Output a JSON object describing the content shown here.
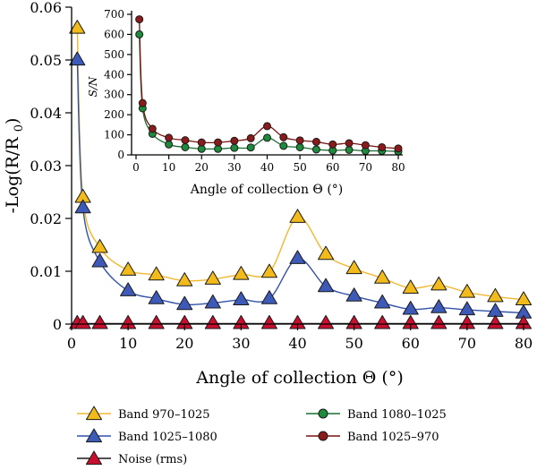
{
  "chart_data": [
    {
      "type": "line",
      "xlabel": "Angle of collection Θ (°)",
      "ylabel": "-Log(R/R0)",
      "xlim": [
        0,
        80
      ],
      "ylim": [
        0,
        0.06
      ],
      "xticks": [
        0,
        10,
        20,
        30,
        40,
        50,
        60,
        70,
        80
      ],
      "yticks": [
        0,
        0.01,
        0.02,
        0.03,
        0.04,
        0.05,
        0.06
      ],
      "xtick_labels": [
        "0",
        "10",
        "20",
        "30",
        "40",
        "50",
        "60",
        "70",
        "80"
      ],
      "ytick_labels": [
        "0",
        "0.01",
        "0.02",
        "0.03",
        "0.04",
        "0.05",
        "0.06"
      ],
      "grid": false,
      "legend_position": "bottom",
      "x": [
        1,
        2,
        5,
        10,
        15,
        20,
        25,
        30,
        35,
        40,
        45,
        50,
        55,
        60,
        65,
        70,
        75,
        80
      ],
      "series": [
        {
          "name": "Band 970–1025",
          "color": "#f2bb1b",
          "line_color": "#f0b830",
          "marker": "triangle",
          "values": [
            0.056,
            0.024,
            0.0145,
            0.0102,
            0.0093,
            0.0082,
            0.0085,
            0.0094,
            0.0098,
            0.0202,
            0.0132,
            0.0105,
            0.0087,
            0.0068,
            0.0074,
            0.006,
            0.0052,
            0.0046
          ]
        },
        {
          "name": "Band 1025–1080",
          "color": "#3d5ab8",
          "line_color": "#3152a8",
          "marker": "triangle",
          "values": [
            0.05,
            0.022,
            0.0118,
            0.0063,
            0.0048,
            0.0037,
            0.004,
            0.0046,
            0.0048,
            0.0124,
            0.0071,
            0.0053,
            0.004,
            0.0028,
            0.0031,
            0.0027,
            0.0024,
            0.0021
          ]
        },
        {
          "name": "Noise (rms)",
          "color": "#c8102e",
          "line_color": "#1a1a1a",
          "marker": "triangle",
          "values": [
            0.0001,
            0.0001,
            0.0001,
            0.0001,
            0.0001,
            0.0001,
            0.0001,
            0.0001,
            0.0001,
            0.0001,
            0.0001,
            0.0001,
            0.0001,
            0.0001,
            0.0001,
            0.0001,
            0.0001,
            0.0001
          ]
        }
      ]
    },
    {
      "type": "line",
      "xlabel": "Angle of collection Θ (°)",
      "ylabel": "S/N",
      "xlim": [
        0,
        80
      ],
      "ylim": [
        0,
        700
      ],
      "xticks": [
        0,
        10,
        20,
        30,
        40,
        50,
        60,
        70,
        80
      ],
      "yticks": [
        0,
        100,
        200,
        300,
        400,
        500,
        600,
        700
      ],
      "xtick_labels": [
        "0",
        "10",
        "20",
        "30",
        "40",
        "50",
        "60",
        "70",
        "80"
      ],
      "ytick_labels": [
        "0",
        "100",
        "200",
        "300",
        "400",
        "500",
        "600",
        "700"
      ],
      "grid": false,
      "legend_position": "bottom",
      "x": [
        1,
        2,
        5,
        10,
        15,
        20,
        25,
        30,
        35,
        40,
        45,
        50,
        55,
        60,
        65,
        70,
        75,
        80
      ],
      "series": [
        {
          "name": "Band 1080–1025",
          "color": "#1e8a3c",
          "line_color": "#1a6e30",
          "marker": "circle",
          "values": [
            600,
            232,
            105,
            52,
            38,
            30,
            30,
            35,
            37,
            85,
            45,
            38,
            27,
            22,
            25,
            20,
            20,
            17
          ]
        },
        {
          "name": "Band 1025–970",
          "color": "#8b1a1a",
          "line_color": "#7a1010",
          "marker": "circle",
          "values": [
            675,
            258,
            130,
            85,
            73,
            62,
            62,
            70,
            83,
            143,
            88,
            72,
            65,
            52,
            58,
            48,
            38,
            32
          ]
        }
      ]
    }
  ]
}
